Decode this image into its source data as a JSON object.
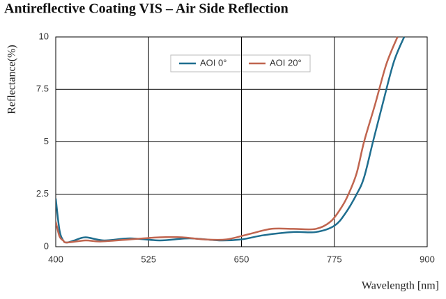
{
  "chart_data": {
    "type": "line",
    "title": "Antireflective Coating VIS  – Air Side Reflection",
    "x_label": "Wavelength [nm]",
    "y_label": "Reflectance(%)",
    "xlim": [
      400,
      900
    ],
    "xticks": [
      400,
      525,
      650,
      775,
      900
    ],
    "ylim": [
      0,
      10
    ],
    "yticks": [
      0,
      2.5,
      5,
      7.5,
      10
    ],
    "grid": true,
    "legend": "top",
    "series": [
      {
        "name": "AOI 0°",
        "color": "#1f6e8f",
        "x": [
          400,
          405,
          410,
          415,
          425,
          440,
          465,
          500,
          540,
          580,
          620,
          650,
          680,
          720,
          750,
          775,
          790,
          805,
          815,
          827,
          840,
          855,
          869
        ],
        "values": [
          2.3,
          0.8,
          0.3,
          0.2,
          0.3,
          0.45,
          0.3,
          0.4,
          0.3,
          0.4,
          0.3,
          0.35,
          0.55,
          0.7,
          0.7,
          1.0,
          1.6,
          2.5,
          3.3,
          5,
          6.8,
          8.8,
          10
        ]
      },
      {
        "name": "AOI 20°",
        "color": "#c0654f",
        "x": [
          400,
          405,
          410,
          415,
          440,
          460,
          500,
          540,
          570,
          600,
          630,
          660,
          690,
          720,
          750,
          770,
          785,
          794,
          805,
          815,
          830,
          845,
          860
        ],
        "values": [
          1.2,
          0.5,
          0.3,
          0.2,
          0.3,
          0.25,
          0.35,
          0.45,
          0.45,
          0.35,
          0.35,
          0.6,
          0.85,
          0.85,
          0.85,
          1.2,
          1.9,
          2.5,
          3.5,
          5,
          6.8,
          8.7,
          10
        ]
      }
    ]
  }
}
